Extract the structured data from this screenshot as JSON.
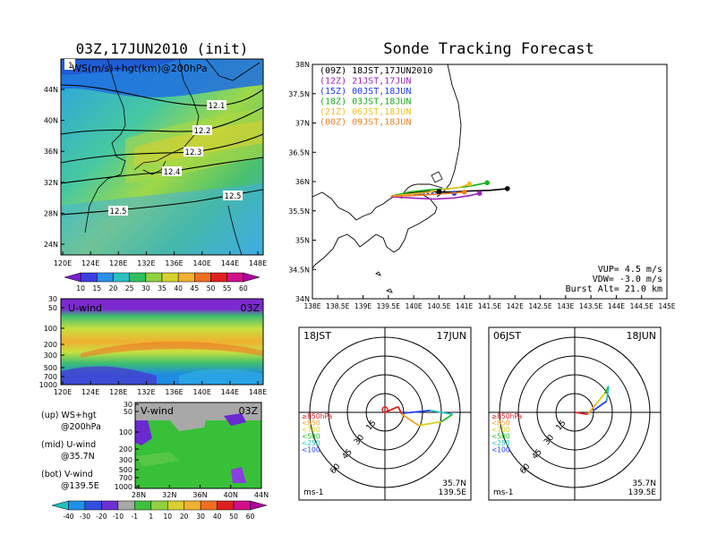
{
  "left": {
    "title": "03Z,17JUN2010 (init)",
    "map": {
      "label": "WS(m/s)+hgt(km)@200hPa",
      "panel_number": "1",
      "lat_ticks": [
        "44N",
        "40N",
        "36N",
        "32N",
        "28N",
        "24N"
      ],
      "lon_ticks": [
        "120E",
        "124E",
        "128E",
        "132E",
        "136E",
        "140E",
        "144E",
        "148E"
      ],
      "contour_labels": [
        "12.1",
        "12.2",
        "12.3",
        "12.4",
        "12.5",
        "12.5"
      ]
    },
    "ws_colorbar": [
      "10",
      "15",
      "20",
      "25",
      "30",
      "35",
      "40",
      "45",
      "50",
      "55",
      "60"
    ],
    "uwind": {
      "label": "U-wind",
      "time": "03Z",
      "p_ticks": [
        "30",
        "50",
        "100",
        "200",
        "300",
        "500",
        "700",
        "1000"
      ],
      "lon_ticks": [
        "120E",
        "124E",
        "128E",
        "132E",
        "136E",
        "140E",
        "144E",
        "148E"
      ]
    },
    "vwind": {
      "label": "V-wind",
      "time": "03Z",
      "p_ticks": [
        "30",
        "50",
        "100",
        "200",
        "300",
        "500",
        "700",
        "1000"
      ],
      "lat_ticks": [
        "28N",
        "32N",
        "36N",
        "40N",
        "44N"
      ]
    },
    "legend_lines": [
      "(up) WS+hgt",
      "@200hPa",
      "(mid) U-wind",
      "@35.7N",
      "(bot) V-wind",
      "@139.5E"
    ],
    "wind_colorbar": [
      "-40",
      "-30",
      "-20",
      "-10",
      "-1",
      "1",
      "10",
      "20",
      "30",
      "40",
      "50",
      "60"
    ]
  },
  "right": {
    "title": "Sonde Tracking Forecast",
    "lat_ticks": [
      "38N",
      "37.5N",
      "37N",
      "36.5N",
      "36N",
      "35.5N",
      "35N",
      "34.5N",
      "34N"
    ],
    "lon_ticks": [
      "138E",
      "138.5E",
      "139E",
      "139.5E",
      "140E",
      "140.5E",
      "141E",
      "141.5E",
      "142E",
      "142.5E",
      "143E",
      "143.5E",
      "144E",
      "144.5E",
      "145E"
    ],
    "legend": [
      {
        "label": "(09Z) 18JST,17JUN2010",
        "color": "#000000"
      },
      {
        "label": "(12Z) 21JST,17JUN",
        "color": "#a020c0"
      },
      {
        "label": "(15Z) 00JST,18JUN",
        "color": "#1e3cff"
      },
      {
        "label": "(18Z) 03JST,18JUN",
        "color": "#18b018"
      },
      {
        "label": "(21Z) 06JST,18JUN",
        "color": "#f0c020"
      },
      {
        "label": "(00Z) 09JST,18JUN",
        "color": "#f08020"
      }
    ],
    "params": [
      "VUP= 4.5 m/s",
      "VDW= -3.0 m/s",
      "Burst Alt= 21.0 km"
    ]
  },
  "hodographs": [
    {
      "time": "18JST",
      "date": "17JUN",
      "loc1": "35.7N",
      "loc2": "139.5E",
      "unit": "ms-1",
      "rings": [
        "15",
        "30",
        "45",
        "60"
      ]
    },
    {
      "time": "06JST",
      "date": "18JUN",
      "loc1": "35.7N",
      "loc2": "139.5E",
      "unit": "ms-1",
      "rings": [
        "15",
        "30",
        "45",
        "60"
      ]
    }
  ],
  "hodo_levels": [
    {
      "label": "≥850hPa",
      "color": "#e02020"
    },
    {
      "label": "<850",
      "color": "#f0a020"
    },
    {
      "label": "<700",
      "color": "#d8d020"
    },
    {
      "label": "<500",
      "color": "#20c020"
    },
    {
      "label": "<250",
      "color": "#20c0c0"
    },
    {
      "label": "<100",
      "color": "#2040ff"
    }
  ],
  "chart_data": {
    "type": "line",
    "title": "Sonde Tracking Forecast",
    "x_unit": "degE",
    "y_unit": "degN",
    "xlim": [
      138,
      145
    ],
    "ylim": [
      34,
      38
    ],
    "series": [
      {
        "name": "(09Z) 18JST,17JUN2010",
        "x": [
          139.55,
          139.9,
          140.3,
          140.7,
          141.1,
          141.5,
          141.85
        ],
        "y": [
          35.75,
          35.8,
          35.83,
          35.82,
          35.84,
          35.85,
          35.88
        ]
      },
      {
        "name": "(12Z) 21JST,17JUN",
        "x": [
          139.55,
          139.95,
          140.4,
          140.8,
          141.1,
          141.3
        ],
        "y": [
          35.74,
          35.72,
          35.7,
          35.72,
          35.76,
          35.8
        ]
      },
      {
        "name": "(15Z) 00JST,18JUN",
        "x": [
          139.55,
          139.9,
          140.3,
          140.6,
          140.8
        ],
        "y": [
          35.75,
          35.78,
          35.8,
          35.8,
          35.8
        ]
      },
      {
        "name": "(18Z) 03JST,18JUN",
        "x": [
          139.55,
          139.9,
          140.3,
          140.7,
          141.1,
          141.45
        ],
        "y": [
          35.75,
          35.82,
          35.86,
          35.88,
          35.92,
          35.98
        ]
      },
      {
        "name": "(21Z) 06JST,18JUN",
        "x": [
          139.55,
          139.95,
          140.3,
          140.6,
          140.9,
          141.1
        ],
        "y": [
          35.75,
          35.79,
          35.82,
          35.87,
          35.9,
          35.96
        ]
      },
      {
        "name": "(00Z) 09JST,18JUN",
        "x": [
          139.55,
          139.95,
          140.35,
          140.7,
          141.0
        ],
        "y": [
          35.75,
          35.76,
          35.78,
          35.8,
          35.82
        ]
      }
    ]
  }
}
